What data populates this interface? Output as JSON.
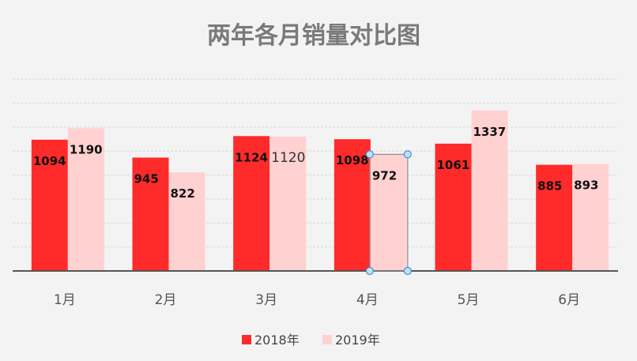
{
  "chart_data": {
    "type": "bar",
    "title": "两年各月销量对比图",
    "categories": [
      "1月",
      "2月",
      "3月",
      "4月",
      "5月",
      "6月"
    ],
    "series": [
      {
        "name": "2018年",
        "values": [
          1094,
          945,
          1124,
          1098,
          1061,
          885
        ],
        "color": "#ff2a2a"
      },
      {
        "name": "2019年",
        "values": [
          1190,
          822,
          1120,
          972,
          1337,
          893
        ],
        "color": "#ffd1d1"
      }
    ],
    "data_label_text": [
      [
        "1094",
        "945",
        "1124",
        "1098",
        "1061",
        "885"
      ],
      [
        "1190",
        "822",
        "1120",
        "972",
        "1337",
        "893"
      ]
    ],
    "ylim": [
      0,
      1600
    ],
    "grid": true,
    "legend": "bottom",
    "selected": {
      "series": 1,
      "index": 3
    }
  }
}
